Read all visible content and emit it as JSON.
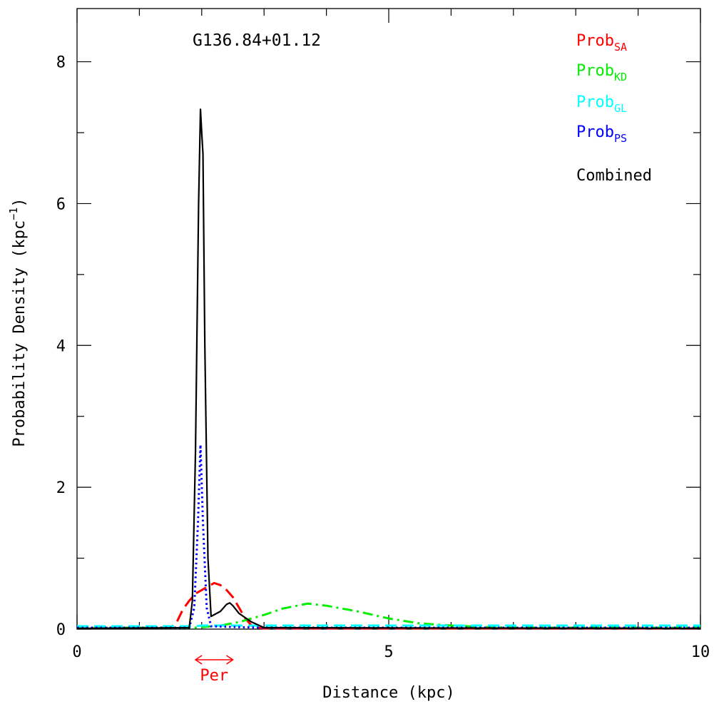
{
  "chart_data": {
    "type": "line",
    "title": "G136.84+01.12",
    "xlabel": "Distance (kpc)",
    "ylabel_main": "Probability Density (kpc",
    "ylabel_sup": "−1",
    "ylabel_close": ")",
    "xlim": [
      0,
      10
    ],
    "ylim": [
      0,
      8.75
    ],
    "xticks": [
      0,
      5,
      10
    ],
    "yticks": [
      0,
      2,
      4,
      6,
      8
    ],
    "x_minor_step": 1,
    "y_minor_step": 1,
    "legend_position": "top-right",
    "legend": [
      {
        "base": "Prob",
        "sub": "SA",
        "color": "#ff0000"
      },
      {
        "base": "Prob",
        "sub": "KD",
        "color": "#00ee00"
      },
      {
        "base": "Prob",
        "sub": "GL",
        "color": "#00ffff"
      },
      {
        "base": "Prob",
        "sub": "PS",
        "color": "#0000ff"
      },
      {
        "base": "Combined",
        "sub": "",
        "color": "#000000"
      }
    ],
    "arm_marker": {
      "label": "Per",
      "x_start": 1.9,
      "x_end": 2.5,
      "color": "#ff0000"
    },
    "series": [
      {
        "name": "Prob_SA",
        "color": "#ff0000",
        "style": "dashed",
        "x": [
          0,
          1.5,
          1.6,
          1.7,
          1.8,
          1.9,
          2.0,
          2.1,
          2.2,
          2.3,
          2.4,
          2.5,
          2.6,
          2.7,
          2.8,
          2.9,
          3.0,
          5,
          10
        ],
        "y": [
          0.02,
          0.02,
          0.1,
          0.28,
          0.4,
          0.5,
          0.55,
          0.6,
          0.65,
          0.62,
          0.55,
          0.45,
          0.3,
          0.15,
          0.05,
          0.02,
          0.01,
          0.01,
          0.01
        ]
      },
      {
        "name": "Prob_KD",
        "color": "#00ee00",
        "style": "dashdot",
        "x": [
          0,
          1.9,
          2.3,
          2.6,
          3.0,
          3.3,
          3.7,
          4.0,
          4.5,
          5.0,
          5.5,
          6.0,
          6.5,
          7.0,
          8.0,
          10
        ],
        "y": [
          0.02,
          0.02,
          0.05,
          0.1,
          0.2,
          0.29,
          0.36,
          0.33,
          0.25,
          0.15,
          0.08,
          0.05,
          0.03,
          0.02,
          0.02,
          0.02
        ]
      },
      {
        "name": "Prob_GL",
        "color": "#00ffff",
        "style": "dashed",
        "x": [
          0,
          1.9,
          2.0,
          3.0,
          5.0,
          7.0,
          10
        ],
        "y": [
          0.04,
          0.04,
          0.05,
          0.05,
          0.05,
          0.05,
          0.05
        ]
      },
      {
        "name": "Prob_PS",
        "color": "#0000ff",
        "style": "dotted",
        "x": [
          0,
          1.8,
          1.88,
          1.94,
          1.98,
          2.02,
          2.08,
          2.15,
          2.5,
          3.0,
          10
        ],
        "y": [
          0.02,
          0.02,
          0.3,
          1.5,
          2.6,
          1.5,
          0.3,
          0.04,
          0.03,
          0.02,
          0.02
        ]
      },
      {
        "name": "Combined",
        "color": "#000000",
        "style": "solid",
        "x": [
          0,
          1.8,
          1.85,
          1.9,
          1.95,
          1.98,
          2.0,
          2.02,
          2.05,
          2.1,
          2.15,
          2.3,
          2.4,
          2.45,
          2.5,
          2.6,
          2.8,
          3.0,
          10
        ],
        "y": [
          0.01,
          0.02,
          0.4,
          2.5,
          6.0,
          7.33,
          7.0,
          6.7,
          4.0,
          1.0,
          0.18,
          0.25,
          0.35,
          0.37,
          0.33,
          0.22,
          0.1,
          0.02,
          0.01
        ]
      }
    ]
  }
}
